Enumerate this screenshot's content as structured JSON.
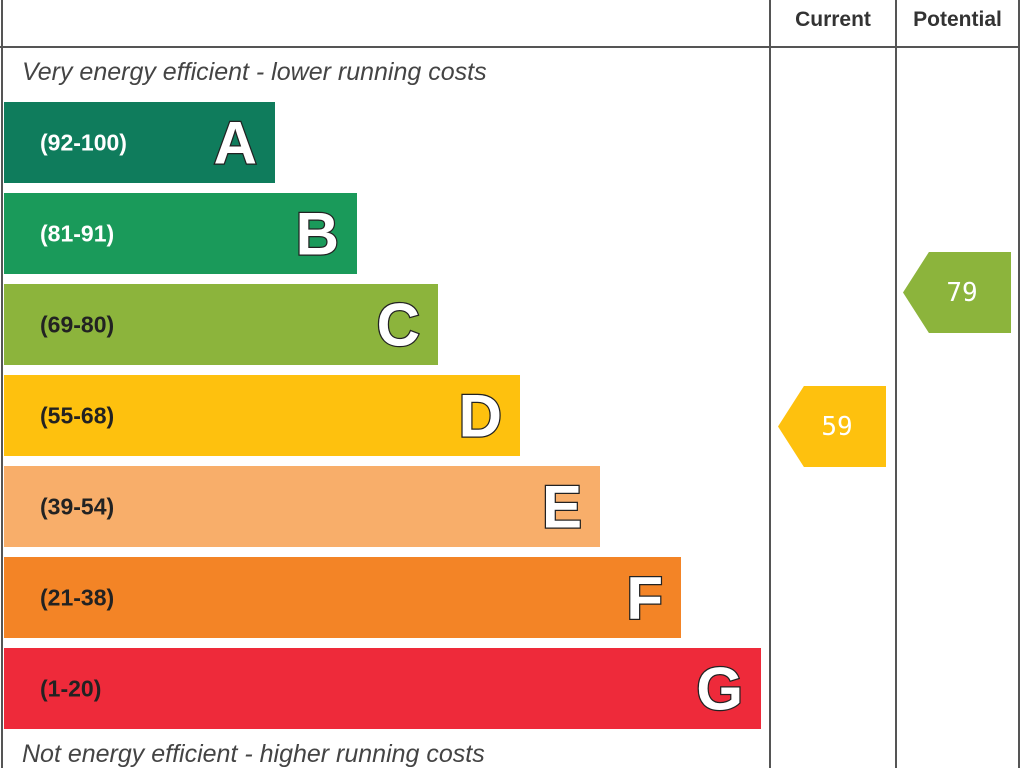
{
  "chart_data": {
    "type": "bar",
    "columns": {
      "current": "Current",
      "potential": "Potential"
    },
    "top_caption": "Very energy efficient - lower running costs",
    "bottom_caption": "Not energy efficient - higher running costs",
    "bands": [
      {
        "letter": "A",
        "range": "(92-100)",
        "color": "#0f7c5c",
        "text_color": "#ffffff"
      },
      {
        "letter": "B",
        "range": "(81-91)",
        "color": "#1a9a5a",
        "text_color": "#ffffff"
      },
      {
        "letter": "C",
        "range": "(69-80)",
        "color": "#8cb43c",
        "text_color": "#222222"
      },
      {
        "letter": "D",
        "range": "(55-68)",
        "color": "#fec10e",
        "text_color": "#222222"
      },
      {
        "letter": "E",
        "range": "(39-54)",
        "color": "#f8ae6a",
        "text_color": "#222222"
      },
      {
        "letter": "F",
        "range": "(21-38)",
        "color": "#f38426",
        "text_color": "#222222"
      },
      {
        "letter": "G",
        "range": "(1-20)",
        "color": "#ee2a3a",
        "text_color": "#222222"
      }
    ],
    "current": {
      "value": "59",
      "band": "D",
      "color": "#fec10e"
    },
    "potential": {
      "value": "79",
      "band": "C",
      "color": "#8cb43c"
    }
  }
}
